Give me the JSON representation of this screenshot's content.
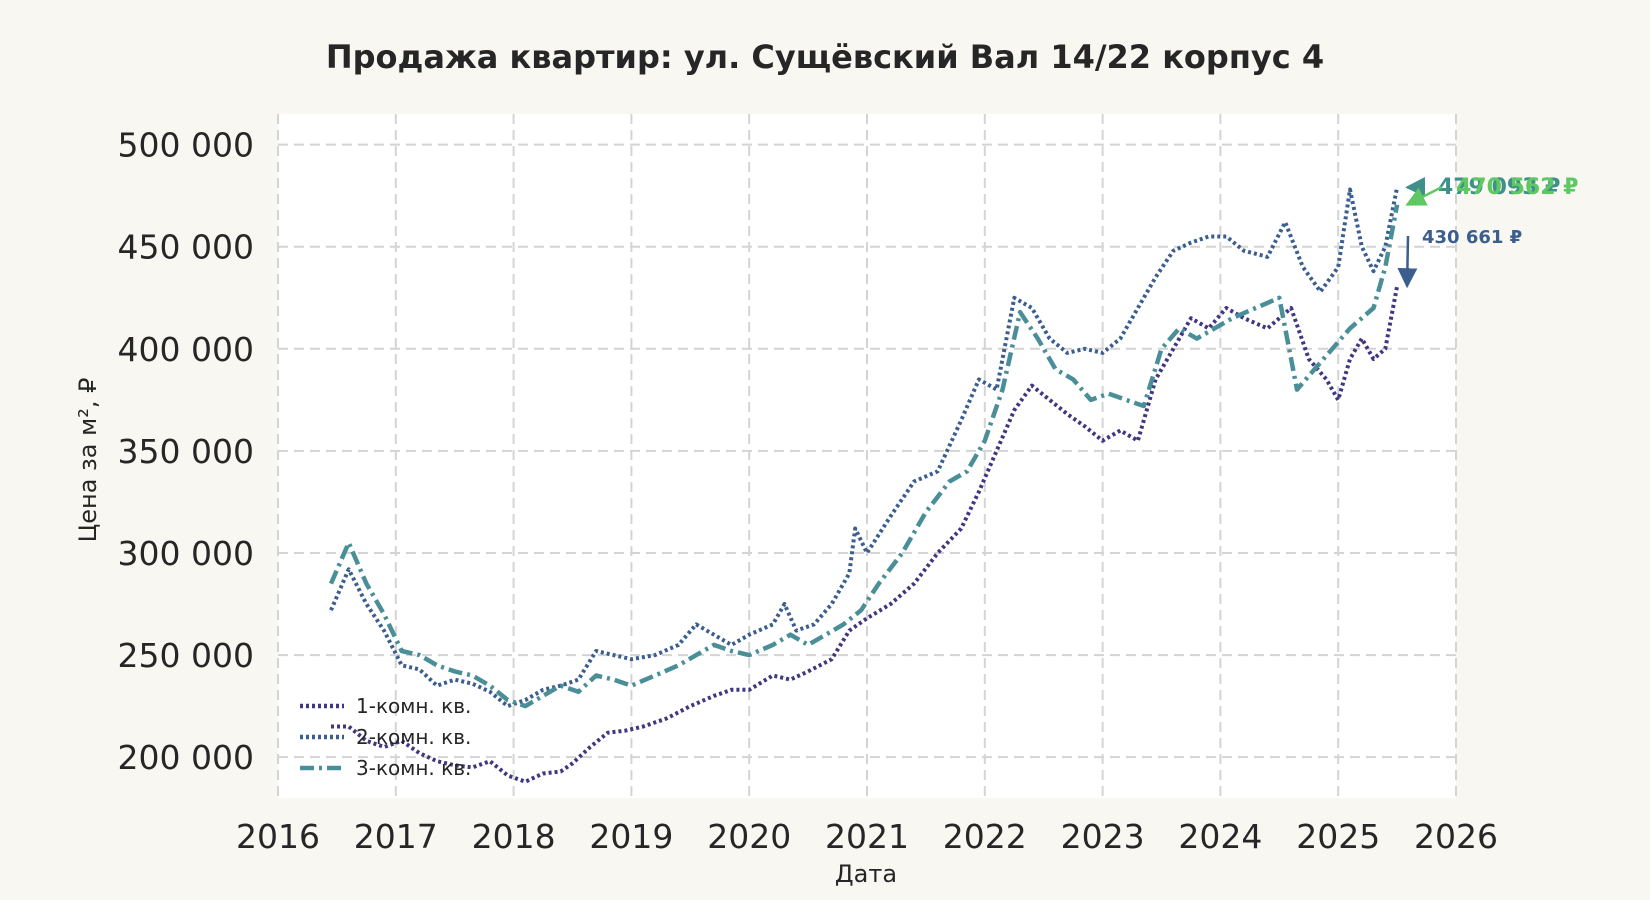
{
  "chart_data": {
    "type": "line",
    "title": "Продажа квартир: ул. Сущёвский Вал 14/22 корпус 4",
    "xlabel": "Дата",
    "ylabel": "Цена за м², ₽",
    "xlim": [
      2016.0,
      2026.0
    ],
    "ylim": [
      180000,
      515000
    ],
    "x_ticks": [
      "2016",
      "2017",
      "2018",
      "2019",
      "2020",
      "2021",
      "2022",
      "2023",
      "2024",
      "2025",
      "2026"
    ],
    "y_ticks": [
      {
        "value": 200000,
        "label": "200 000"
      },
      {
        "value": 250000,
        "label": "250 000"
      },
      {
        "value": 300000,
        "label": "300 000"
      },
      {
        "value": 350000,
        "label": "350 000"
      },
      {
        "value": 400000,
        "label": "400 000"
      },
      {
        "value": 450000,
        "label": "450 000"
      },
      {
        "value": 500000,
        "label": "500 000"
      }
    ],
    "grid": true,
    "legend_position": "lower-left",
    "series": [
      {
        "name": "1-комн. кв.",
        "color": "#3f3780",
        "dash": "dotted",
        "x": [
          2016.45,
          2016.6,
          2016.75,
          2016.9,
          2017.05,
          2017.2,
          2017.35,
          2017.5,
          2017.65,
          2017.8,
          2017.95,
          2018.1,
          2018.25,
          2018.4,
          2018.5,
          2018.65,
          2018.8,
          2018.95,
          2019.1,
          2019.3,
          2019.5,
          2019.7,
          2019.85,
          2020.0,
          2020.2,
          2020.35,
          2020.5,
          2020.7,
          2020.85,
          2021.0,
          2021.2,
          2021.4,
          2021.6,
          2021.8,
          2021.95,
          2022.1,
          2022.25,
          2022.4,
          2022.55,
          2022.7,
          2022.85,
          2023.0,
          2023.15,
          2023.3,
          2023.45,
          2023.6,
          2023.75,
          2023.9,
          2024.05,
          2024.2,
          2024.4,
          2024.6,
          2024.75,
          2024.9,
          2025.0,
          2025.1,
          2025.2,
          2025.3,
          2025.4,
          2025.5
        ],
        "y": [
          215000,
          215000,
          208000,
          205000,
          208000,
          202000,
          198000,
          196000,
          195000,
          198000,
          191000,
          188000,
          192000,
          193000,
          197000,
          205000,
          212000,
          213000,
          215000,
          219000,
          225000,
          230000,
          233000,
          233000,
          240000,
          238000,
          242000,
          248000,
          262000,
          268000,
          275000,
          285000,
          300000,
          312000,
          330000,
          350000,
          370000,
          382000,
          375000,
          368000,
          362000,
          355000,
          360000,
          355000,
          385000,
          400000,
          415000,
          410000,
          420000,
          415000,
          410000,
          420000,
          395000,
          385000,
          375000,
          395000,
          405000,
          395000,
          400000,
          430661
        ]
      },
      {
        "name": "2-комн. кв.",
        "color": "#3b5e8e",
        "dash": "dotted",
        "x": [
          2016.45,
          2016.6,
          2016.75,
          2016.9,
          2017.05,
          2017.2,
          2017.35,
          2017.5,
          2017.65,
          2017.8,
          2017.95,
          2018.1,
          2018.25,
          2018.4,
          2018.55,
          2018.7,
          2018.85,
          2019.0,
          2019.2,
          2019.4,
          2019.55,
          2019.7,
          2019.85,
          2020.0,
          2020.2,
          2020.3,
          2020.4,
          2020.55,
          2020.7,
          2020.85,
          2020.9,
          2021.0,
          2021.2,
          2021.4,
          2021.6,
          2021.8,
          2021.95,
          2022.1,
          2022.25,
          2022.4,
          2022.55,
          2022.7,
          2022.85,
          2023.0,
          2023.15,
          2023.3,
          2023.45,
          2023.6,
          2023.75,
          2023.9,
          2024.05,
          2024.2,
          2024.4,
          2024.55,
          2024.7,
          2024.85,
          2025.0,
          2025.1,
          2025.2,
          2025.3,
          2025.4,
          2025.5
        ],
        "y": [
          272000,
          292000,
          275000,
          262000,
          245000,
          243000,
          235000,
          238000,
          236000,
          232000,
          225000,
          228000,
          233000,
          235000,
          238000,
          252000,
          250000,
          248000,
          250000,
          255000,
          265000,
          260000,
          255000,
          260000,
          265000,
          275000,
          262000,
          265000,
          275000,
          290000,
          312000,
          300000,
          318000,
          335000,
          340000,
          365000,
          385000,
          380000,
          425000,
          420000,
          405000,
          398000,
          400000,
          398000,
          405000,
          420000,
          435000,
          448000,
          452000,
          455000,
          455000,
          448000,
          445000,
          462000,
          440000,
          428000,
          440000,
          478000,
          450000,
          438000,
          450000,
          479093
        ]
      },
      {
        "name": "3-комн. кв.",
        "color": "#4a8f98",
        "dash": "dashdot",
        "x": [
          2016.45,
          2016.6,
          2016.75,
          2016.9,
          2017.05,
          2017.2,
          2017.35,
          2017.5,
          2017.65,
          2017.8,
          2017.95,
          2018.1,
          2018.25,
          2018.4,
          2018.55,
          2018.7,
          2018.85,
          2019.0,
          2019.2,
          2019.4,
          2019.55,
          2019.7,
          2019.85,
          2020.0,
          2020.2,
          2020.35,
          2020.5,
          2020.65,
          2020.8,
          2020.95,
          2021.1,
          2021.3,
          2021.5,
          2021.7,
          2021.85,
          2022.0,
          2022.15,
          2022.3,
          2022.45,
          2022.6,
          2022.75,
          2022.9,
          2023.05,
          2023.2,
          2023.35,
          2023.5,
          2023.65,
          2023.8,
          2023.95,
          2024.1,
          2024.3,
          2024.5,
          2024.65,
          2024.8,
          2024.95,
          2025.1,
          2025.2,
          2025.3,
          2025.4,
          2025.5
        ],
        "y": [
          285000,
          305000,
          285000,
          270000,
          252000,
          250000,
          245000,
          242000,
          240000,
          235000,
          228000,
          225000,
          230000,
          235000,
          232000,
          240000,
          238000,
          235000,
          240000,
          245000,
          250000,
          255000,
          252000,
          250000,
          255000,
          260000,
          255000,
          260000,
          265000,
          272000,
          285000,
          300000,
          320000,
          335000,
          340000,
          355000,
          380000,
          418000,
          405000,
          390000,
          385000,
          375000,
          378000,
          375000,
          372000,
          400000,
          410000,
          405000,
          410000,
          415000,
          420000,
          425000,
          380000,
          390000,
          400000,
          410000,
          415000,
          420000,
          440000,
          470562
        ]
      }
    ],
    "annotations": [
      {
        "label": "479 093 ₽",
        "series": "2-комн. кв.",
        "color": "#3f8f8b",
        "x": 2025.5,
        "y": 479093
      },
      {
        "label": "470 562 ₽",
        "series": "3-комн. кв.",
        "color": "#5ec962",
        "x": 2025.5,
        "y": 470562
      },
      {
        "label": "430 661 ₽",
        "series": "1-комн. кв.",
        "color": "#3b5e8e",
        "x": 2025.5,
        "y": 430661
      }
    ]
  }
}
